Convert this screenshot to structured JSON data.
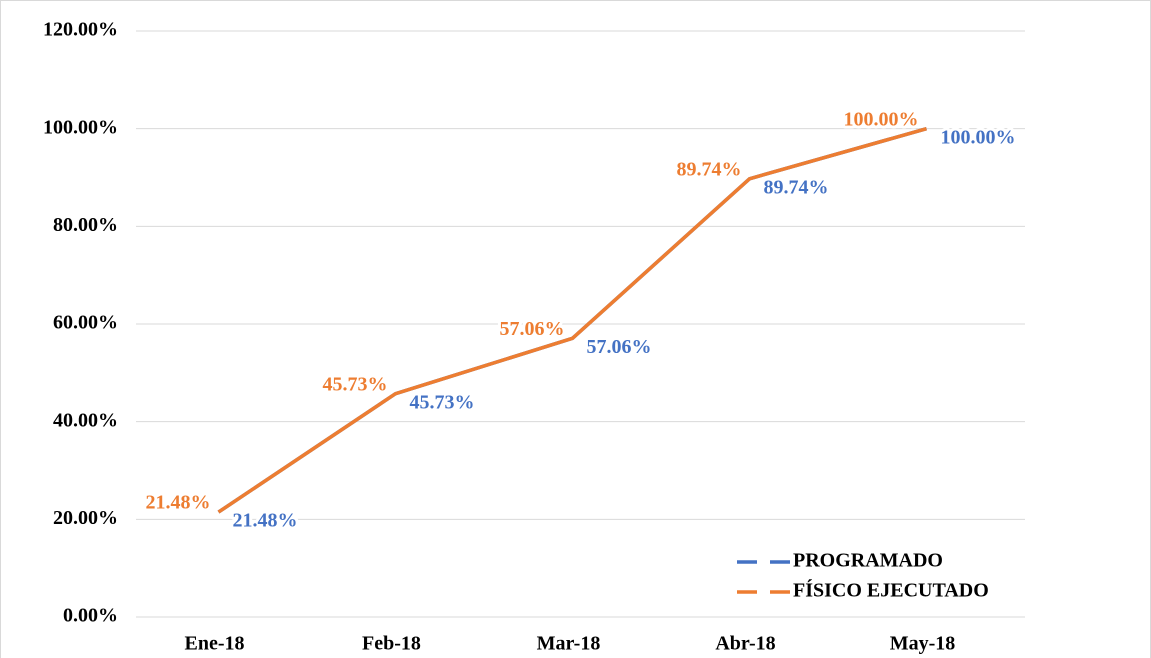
{
  "chart_data": {
    "type": "line",
    "categories": [
      "Ene-18",
      "Feb-18",
      "Mar-18",
      "Abr-18",
      "May-18"
    ],
    "series": [
      {
        "name": "PROGRAMADO",
        "color": "#4472c4",
        "values": [
          21.48,
          45.73,
          57.06,
          89.74,
          100
        ],
        "value_labels": [
          "21.48%",
          "45.73%",
          "57.06%",
          "89.74%",
          "100.00%"
        ]
      },
      {
        "name": "FÍSICO EJECUTADO",
        "color": "#ed7d31",
        "values": [
          21.48,
          45.73,
          57.06,
          89.74,
          100
        ],
        "value_labels": [
          "21.48%",
          "45.73%",
          "57.06%",
          "89.74%",
          "100.00%"
        ]
      }
    ],
    "ylim": [
      0,
      120
    ],
    "yticks": [
      {
        "value": 0,
        "label": "0.00%"
      },
      {
        "value": 20,
        "label": "20.00%"
      },
      {
        "value": 40,
        "label": "40.00%"
      },
      {
        "value": 60,
        "label": "60.00%"
      },
      {
        "value": 80,
        "label": "80.00%"
      },
      {
        "value": 100,
        "label": "100.00%"
      },
      {
        "value": 120,
        "label": "120.00%"
      }
    ],
    "grid": true,
    "legend": "lower right"
  }
}
